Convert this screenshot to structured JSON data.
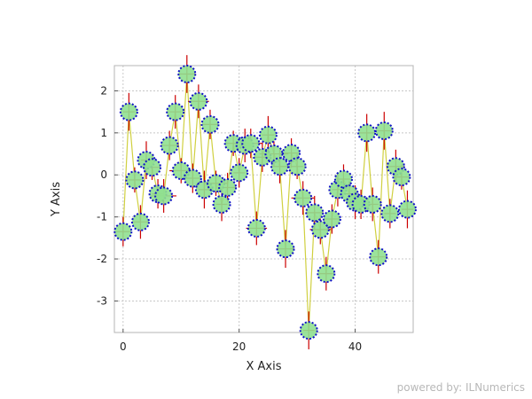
{
  "chart_data": {
    "type": "scatter",
    "title": "",
    "xlabel": "X Axis",
    "ylabel": "Y Axis",
    "xlim": [
      -1.5,
      50
    ],
    "ylim": [
      -3.75,
      2.6
    ],
    "xticks": [
      0,
      20,
      40
    ],
    "yticks": [
      2,
      1,
      0,
      -1,
      -2,
      -3
    ],
    "grid": true,
    "legend": "none",
    "series": [
      {
        "style": "line with markers and error bars",
        "x": [
          0,
          1,
          2,
          3,
          4,
          5,
          6,
          7,
          8,
          9,
          10,
          11,
          12,
          13,
          14,
          15,
          16,
          17,
          18,
          19,
          20,
          21,
          22,
          23,
          24,
          25,
          26,
          27,
          28,
          29,
          30,
          31,
          32,
          33,
          34,
          35,
          36,
          37,
          38,
          39,
          40,
          41,
          42,
          43,
          44,
          45,
          46,
          47,
          48,
          49
        ],
        "y": [
          -1.35,
          1.5,
          -0.12,
          -1.12,
          0.35,
          0.18,
          -0.45,
          -0.5,
          0.7,
          1.5,
          0.1,
          2.4,
          -0.08,
          1.75,
          -0.35,
          1.2,
          -0.2,
          -0.7,
          -0.3,
          0.75,
          0.05,
          0.7,
          0.75,
          -1.27,
          0.42,
          0.95,
          0.5,
          0.2,
          -1.76,
          0.52,
          0.2,
          -0.55,
          -3.7,
          -0.9,
          -1.3,
          -2.35,
          -1.05,
          -0.35,
          -0.1,
          -0.45,
          -0.65,
          -0.7,
          1.0,
          -0.7,
          -1.95,
          1.05,
          -0.92,
          0.2,
          -0.05,
          -0.82
        ],
        "xerr": [
          1.2,
          1.0,
          1.1,
          1.3,
          0.9,
          1.4,
          1.0,
          2.2,
          1.5,
          1.0,
          2.0,
          1.5,
          1.2,
          1.8,
          1.0,
          1.3,
          2.0,
          1.0,
          1.5,
          1.4,
          1.0,
          1.2,
          2.0,
          1.8,
          1.5,
          1.1,
          2.5,
          1.5,
          1.5,
          1.2,
          1.0,
          2.0,
          1.0,
          1.5,
          1.8,
          1.2,
          1.3,
          1.0,
          1.2,
          1.0,
          1.5,
          1.3,
          1.4,
          1.0,
          1.5,
          1.2,
          1.0,
          1.5,
          1.2,
          1.0
        ],
        "yerr": [
          0.35,
          0.45,
          0.3,
          0.4,
          0.45,
          0.3,
          0.35,
          0.4,
          0.35,
          0.4,
          0.3,
          0.45,
          0.35,
          0.4,
          0.45,
          0.35,
          0.3,
          0.4,
          0.35,
          0.3,
          0.35,
          0.4,
          0.35,
          0.4,
          0.35,
          0.45,
          0.3,
          0.4,
          0.45,
          0.35,
          0.3,
          0.4,
          0.45,
          0.4,
          0.35,
          0.4,
          0.35,
          0.4,
          0.35,
          0.3,
          0.4,
          0.35,
          0.45,
          0.4,
          0.4,
          0.45,
          0.35,
          0.4,
          0.3,
          0.45
        ]
      }
    ]
  },
  "watermark": {
    "label": "powered by:",
    "brand": "ILNumerics"
  },
  "colors": {
    "marker_fill": "#90e090",
    "marker_edge": "#1010c8",
    "line": "#d0d040",
    "error_bar": "#cc0000",
    "grid": "#c8c8c8",
    "frame": "#b4b4b4"
  }
}
